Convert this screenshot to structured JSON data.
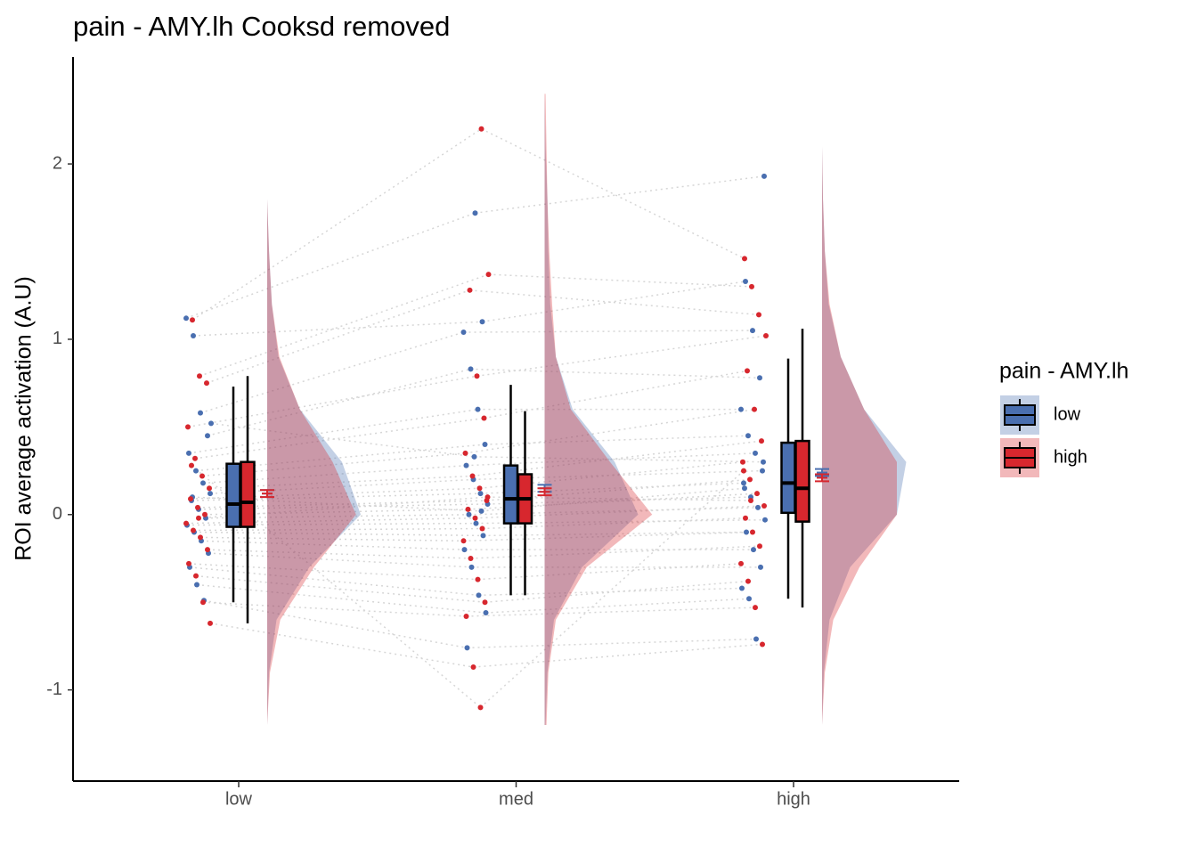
{
  "chart_data": {
    "type": "raincloud",
    "title": "pain  -  AMY.lh Cooksd removed",
    "y_label": "ROI average activation (A.U)",
    "legend_title": "pain  -  AMY.lh",
    "categories": [
      "low",
      "med",
      "high"
    ],
    "ylim": [
      -1.52,
      2.61
    ],
    "yticks": [
      -1,
      0,
      1,
      2
    ],
    "density_y": [
      -1.2,
      -0.9,
      -0.6,
      -0.3,
      0,
      0.3,
      0.6,
      0.9,
      1.2,
      1.5,
      1.8,
      2.1,
      2.4
    ],
    "series": [
      {
        "name": "low",
        "color": "#4a6fb0",
        "points": [
          [
            1.12,
            1.02,
            0.58,
            0.45,
            0.35,
            0.25,
            0.18,
            0.12,
            0.08,
            0.03,
            -0.02,
            -0.06,
            -0.1,
            -0.15,
            -0.22,
            -0.3,
            -0.4,
            -0.49,
            0.52,
            0.1
          ],
          [
            1.72,
            1.1,
            1.04,
            0.83,
            0.6,
            0.4,
            0.28,
            0.2,
            0.12,
            0.06,
            0.0,
            -0.05,
            -0.12,
            -0.2,
            -0.3,
            -0.46,
            -0.56,
            -0.76,
            0.33,
            0.02
          ],
          [
            1.93,
            1.33,
            1.05,
            0.78,
            0.6,
            0.45,
            0.35,
            0.25,
            0.18,
            0.1,
            0.04,
            -0.03,
            -0.1,
            -0.2,
            -0.3,
            -0.42,
            -0.48,
            -0.71,
            0.3,
            0.15
          ]
        ],
        "box": [
          {
            "min": -0.5,
            "q1": -0.07,
            "median": 0.06,
            "q3": 0.29,
            "max": 0.73
          },
          {
            "min": -0.46,
            "q1": -0.05,
            "median": 0.09,
            "q3": 0.28,
            "max": 0.74
          },
          {
            "min": -0.48,
            "q1": 0.01,
            "median": 0.18,
            "q3": 0.41,
            "max": 0.89
          }
        ],
        "mean": [
          0.12,
          0.15,
          0.24
        ],
        "se": [
          0.02,
          0.02,
          0.02
        ],
        "density": [
          [
            0,
            0.02,
            0.1,
            0.45,
            1.0,
            0.8,
            0.35,
            0.12,
            0.05,
            0.02,
            0,
            0,
            0
          ],
          [
            0.01,
            0.03,
            0.1,
            0.4,
            1.0,
            0.75,
            0.3,
            0.12,
            0.06,
            0.04,
            0.03,
            0.01,
            0
          ],
          [
            0,
            0.02,
            0.08,
            0.3,
            0.8,
            0.9,
            0.45,
            0.2,
            0.07,
            0.03,
            0.01,
            0,
            0
          ]
        ]
      },
      {
        "name": "high",
        "color": "#d7272e",
        "points": [
          [
            1.11,
            0.79,
            0.75,
            0.5,
            0.32,
            0.22,
            0.15,
            0.09,
            0.04,
            0.0,
            -0.05,
            -0.09,
            -0.13,
            -0.2,
            -0.28,
            -0.35,
            -0.5,
            -0.62,
            0.28,
            -0.02
          ],
          [
            2.2,
            1.37,
            1.28,
            0.79,
            0.55,
            0.35,
            0.22,
            0.15,
            0.08,
            0.03,
            -0.02,
            -0.08,
            -0.15,
            -0.25,
            -0.37,
            -0.5,
            -0.58,
            -0.87,
            -1.1,
            0.1
          ],
          [
            1.46,
            1.3,
            1.14,
            1.02,
            0.82,
            0.6,
            0.42,
            0.3,
            0.2,
            0.12,
            0.05,
            -0.02,
            -0.1,
            -0.18,
            -0.28,
            -0.38,
            -0.53,
            -0.74,
            0.25,
            0.08
          ]
        ],
        "box": [
          {
            "min": -0.62,
            "q1": -0.07,
            "median": 0.07,
            "q3": 0.3,
            "max": 0.79
          },
          {
            "min": -0.46,
            "q1": -0.05,
            "median": 0.09,
            "q3": 0.23,
            "max": 0.59
          },
          {
            "min": -0.53,
            "q1": -0.04,
            "median": 0.15,
            "q3": 0.42,
            "max": 1.06
          }
        ],
        "mean": [
          0.12,
          0.13,
          0.21
        ],
        "se": [
          0.02,
          0.02,
          0.02
        ],
        "density": [
          [
            0,
            0.03,
            0.14,
            0.5,
            0.95,
            0.7,
            0.35,
            0.13,
            0.05,
            0.02,
            0,
            0,
            0
          ],
          [
            0.02,
            0.04,
            0.12,
            0.45,
            1.15,
            0.7,
            0.28,
            0.12,
            0.08,
            0.05,
            0.03,
            0.02,
            0.01
          ],
          [
            0,
            0.03,
            0.12,
            0.4,
            0.8,
            0.8,
            0.45,
            0.2,
            0.08,
            0.03,
            0.01,
            0,
            0
          ]
        ]
      }
    ]
  }
}
